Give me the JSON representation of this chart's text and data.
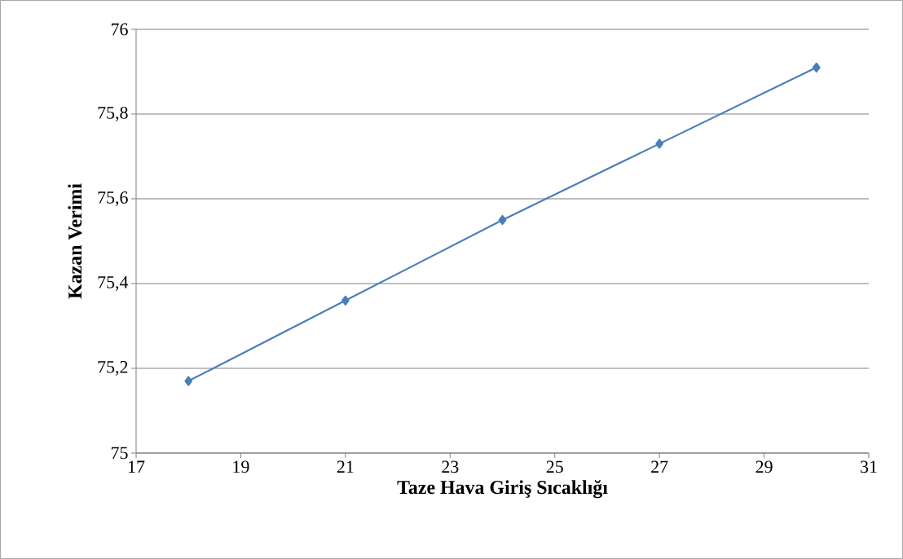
{
  "chart_data": {
    "type": "line",
    "xlabel": "Taze Hava Giriş Sıcaklığı",
    "ylabel": "Kazan Verimi",
    "x": [
      18,
      21,
      24,
      27,
      30
    ],
    "series": [
      {
        "color": "#4a7ebb",
        "values": [
          75.17,
          75.36,
          75.55,
          75.73,
          75.91
        ]
      }
    ],
    "xlim": [
      17,
      31
    ],
    "xticks": [
      17,
      19,
      21,
      23,
      25,
      27,
      29,
      31
    ],
    "ylim": [
      75,
      76
    ],
    "yticks": [
      {
        "value": 75,
        "label": "75"
      },
      {
        "value": 75.2,
        "label": "75,2"
      },
      {
        "value": 75.4,
        "label": "75,4"
      },
      {
        "value": 75.6,
        "label": "75,6"
      },
      {
        "value": 75.8,
        "label": "75,8"
      },
      {
        "value": 76,
        "label": "76"
      }
    ],
    "grid": "y",
    "marker": "diamond",
    "line_style": "solid"
  }
}
